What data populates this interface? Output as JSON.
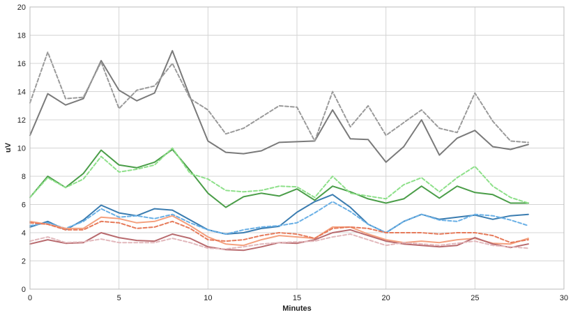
{
  "chart_data": {
    "type": "line",
    "title": "",
    "xlabel": "Minutes",
    "ylabel": "uV",
    "xlim": [
      0,
      30
    ],
    "ylim": [
      0,
      20
    ],
    "xticks": [
      0,
      5,
      10,
      15,
      20,
      25,
      30
    ],
    "yticks": [
      0,
      2,
      4,
      6,
      8,
      10,
      12,
      14,
      16,
      18,
      20
    ],
    "grid": true,
    "legend": "none",
    "x": [
      0,
      1,
      2,
      3,
      4,
      5,
      6,
      7,
      8,
      9,
      10,
      11,
      12,
      13,
      14,
      15,
      16,
      17,
      18,
      19,
      20,
      21,
      22,
      23,
      24,
      25,
      26,
      27,
      28
    ],
    "series": [
      {
        "color": "#7a7a7a",
        "dash": false,
        "values": [
          10.9,
          13.85,
          13.05,
          13.5,
          16.2,
          14.1,
          13.35,
          13.9,
          16.9,
          13.6,
          10.5,
          9.7,
          9.6,
          9.8,
          10.4,
          10.45,
          10.5,
          12.7,
          10.65,
          10.6,
          9.0,
          10.1,
          12.0,
          9.5,
          10.7,
          11.25,
          10.1,
          9.9,
          10.25
        ]
      },
      {
        "color": "#9a9a9a",
        "dash": true,
        "values": [
          13.2,
          16.8,
          13.5,
          13.6,
          16.1,
          12.8,
          14.1,
          14.4,
          16.0,
          13.5,
          12.7,
          11.0,
          11.4,
          12.2,
          13.0,
          12.9,
          10.5,
          14.0,
          11.5,
          13.0,
          10.9,
          11.8,
          12.7,
          11.4,
          11.1,
          13.9,
          11.9,
          10.5,
          10.4
        ]
      },
      {
        "color": "#4a9d48",
        "dash": false,
        "values": [
          6.5,
          8.0,
          7.2,
          8.2,
          9.85,
          8.8,
          8.6,
          9.0,
          9.9,
          8.4,
          6.8,
          5.8,
          6.55,
          6.8,
          6.6,
          7.1,
          6.3,
          7.3,
          6.9,
          6.4,
          6.1,
          6.4,
          7.3,
          6.45,
          7.3,
          6.85,
          6.7,
          6.1,
          6.1
        ]
      },
      {
        "color": "#8ee08a",
        "dash": true,
        "values": [
          6.5,
          7.9,
          7.2,
          7.8,
          9.4,
          8.3,
          8.5,
          8.8,
          10.0,
          8.2,
          7.8,
          7.0,
          6.9,
          7.0,
          7.3,
          7.25,
          6.5,
          8.0,
          6.8,
          6.6,
          6.4,
          7.4,
          7.9,
          6.9,
          7.9,
          8.7,
          7.3,
          6.5,
          6.1
        ]
      },
      {
        "color": "#3a7cb0",
        "dash": false,
        "values": [
          4.4,
          4.8,
          4.2,
          4.9,
          5.95,
          5.4,
          5.2,
          5.7,
          5.6,
          4.9,
          4.2,
          3.9,
          4.0,
          4.3,
          4.45,
          5.45,
          6.2,
          6.7,
          5.8,
          4.6,
          4.0,
          4.8,
          5.3,
          4.95,
          5.1,
          5.25,
          4.95,
          5.2,
          5.3
        ]
      },
      {
        "color": "#6ab0e6",
        "dash": true,
        "values": [
          4.5,
          4.7,
          4.3,
          4.8,
          5.7,
          5.1,
          5.2,
          5.0,
          5.3,
          4.7,
          4.2,
          3.9,
          4.2,
          4.4,
          4.5,
          4.7,
          5.4,
          6.2,
          5.5,
          4.6,
          4.0,
          4.8,
          5.3,
          4.9,
          4.8,
          5.3,
          5.2,
          4.9,
          4.5
        ]
      },
      {
        "color": "#f4a07e",
        "dash": false,
        "values": [
          4.8,
          4.6,
          4.3,
          4.3,
          5.1,
          5.0,
          4.7,
          4.8,
          5.2,
          4.5,
          3.7,
          3.2,
          3.1,
          3.5,
          3.8,
          3.7,
          3.6,
          4.4,
          4.4,
          3.9,
          3.5,
          3.3,
          3.4,
          3.3,
          3.5,
          3.6,
          3.25,
          3.2,
          3.6
        ]
      },
      {
        "color": "#e67a5a",
        "dash": true,
        "values": [
          4.7,
          4.6,
          4.2,
          4.2,
          4.8,
          4.7,
          4.3,
          4.4,
          4.8,
          4.3,
          3.5,
          3.4,
          3.5,
          3.8,
          4.0,
          3.9,
          3.6,
          4.3,
          4.4,
          4.3,
          4.0,
          4.0,
          4.0,
          3.9,
          4.0,
          4.0,
          3.8,
          3.3,
          3.5
        ]
      },
      {
        "color": "#b86a6e",
        "dash": false,
        "values": [
          3.2,
          3.5,
          3.25,
          3.3,
          4.0,
          3.65,
          3.45,
          3.4,
          3.9,
          3.6,
          3.0,
          2.8,
          2.75,
          3.0,
          3.3,
          3.25,
          3.5,
          4.0,
          4.2,
          3.8,
          3.4,
          3.2,
          3.1,
          3.0,
          3.1,
          3.65,
          3.2,
          2.95,
          3.2
        ]
      },
      {
        "color": "#e2b8bc",
        "dash": true,
        "values": [
          3.4,
          3.7,
          3.3,
          3.35,
          3.55,
          3.3,
          3.3,
          3.3,
          3.6,
          3.3,
          2.9,
          2.85,
          3.0,
          3.2,
          3.3,
          3.35,
          3.4,
          3.7,
          3.9,
          3.5,
          3.1,
          3.3,
          3.2,
          3.1,
          3.25,
          3.4,
          3.1,
          3.0,
          2.9
        ]
      }
    ]
  }
}
